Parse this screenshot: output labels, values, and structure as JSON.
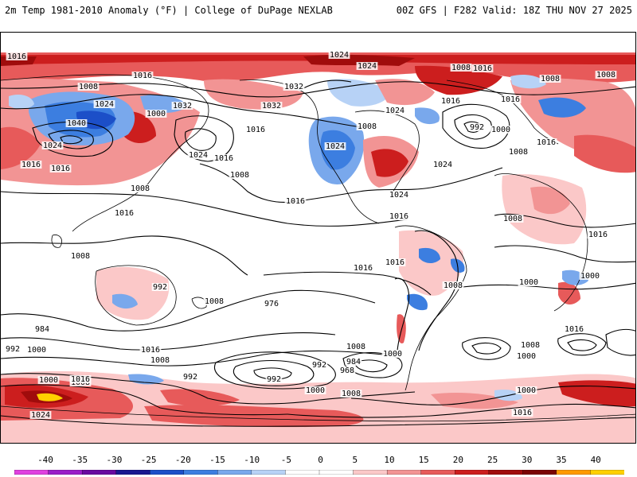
{
  "header": {
    "left_title": "2m Temp 1981-2010 Anomaly (°F) | College of DuPage NEXLAB",
    "right_title": "00Z GFS | F282 Valid: 18Z THU NOV 27 2025"
  },
  "colorbar": {
    "ticks": [
      "-40",
      "-35",
      "-30",
      "-25",
      "-20",
      "-15",
      "-10",
      "-5",
      "0",
      "5",
      "10",
      "15",
      "20",
      "25",
      "30",
      "35",
      "40"
    ],
    "colors": [
      "#e040e0",
      "#9a1ec8",
      "#6a0aa0",
      "#1a1890",
      "#1c4fc8",
      "#3c7ee0",
      "#79a8ec",
      "#b7d2f6",
      "#ffffff",
      "#ffffff",
      "#fbc8c8",
      "#f29494",
      "#e75a5a",
      "#cc1e1e",
      "#a00c0c",
      "#7a0404",
      "#ff9a00",
      "#ffd000"
    ]
  },
  "isobar_labels": [
    "1016",
    "1024",
    "1008",
    "1016",
    "1032",
    "1024",
    "1032",
    "1040",
    "1024",
    "1016",
    "1000",
    "1008",
    "1024",
    "1016",
    "1008",
    "1016",
    "1008",
    "1032",
    "1016",
    "1024",
    "1008",
    "1024",
    "1016",
    "1024",
    "992",
    "1000",
    "1008",
    "1016",
    "1024",
    "1016",
    "1008",
    "1016",
    "1008",
    "1016",
    "1016",
    "1024",
    "1016",
    "1008",
    "1016",
    "1008",
    "1016",
    "1000",
    "992",
    "1016",
    "1008",
    "1000",
    "1008",
    "976",
    "984",
    "992",
    "968",
    "984",
    "992",
    "1000",
    "1008",
    "1000",
    "1008",
    "1016",
    "992",
    "1008",
    "1000",
    "1016",
    "1008",
    "992",
    "1000",
    "1000",
    "1008",
    "1016",
    "1024",
    "1000",
    "1016"
  ]
}
